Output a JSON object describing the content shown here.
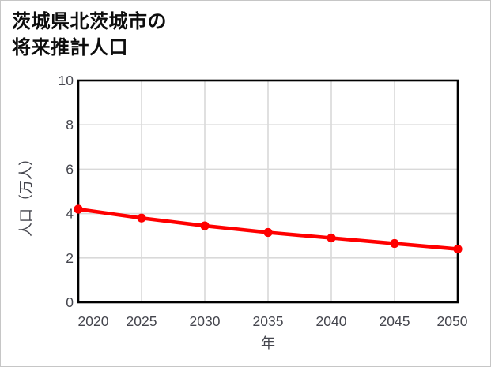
{
  "title": {
    "line1": "茨城県北茨城市の",
    "line2": "将来推計人口"
  },
  "chart_data": {
    "type": "line",
    "title": "茨城県北茨城市の将来推計人口",
    "categories": [
      "2020",
      "2025",
      "2030",
      "2035",
      "2040",
      "2045",
      "2050"
    ],
    "values": [
      4.2,
      3.8,
      3.45,
      3.15,
      2.9,
      2.65,
      2.4
    ],
    "xlabel": "年",
    "ylabel": "人口（万人）",
    "ylim": [
      0,
      10
    ],
    "yticks": [
      0,
      2,
      4,
      6,
      8,
      10
    ],
    "grid": true,
    "legend": "none",
    "marker": "circle"
  },
  "colors": {
    "line": "#ff0000",
    "marker": "#ff0000",
    "grid": "#d9d9d9",
    "axis_frame": "#000000",
    "tick_label": "#45464e",
    "axis_title": "#45464e",
    "title_text": "#0d0d0d",
    "background": "#ffffff",
    "outer_border": "#c6c6c6"
  }
}
